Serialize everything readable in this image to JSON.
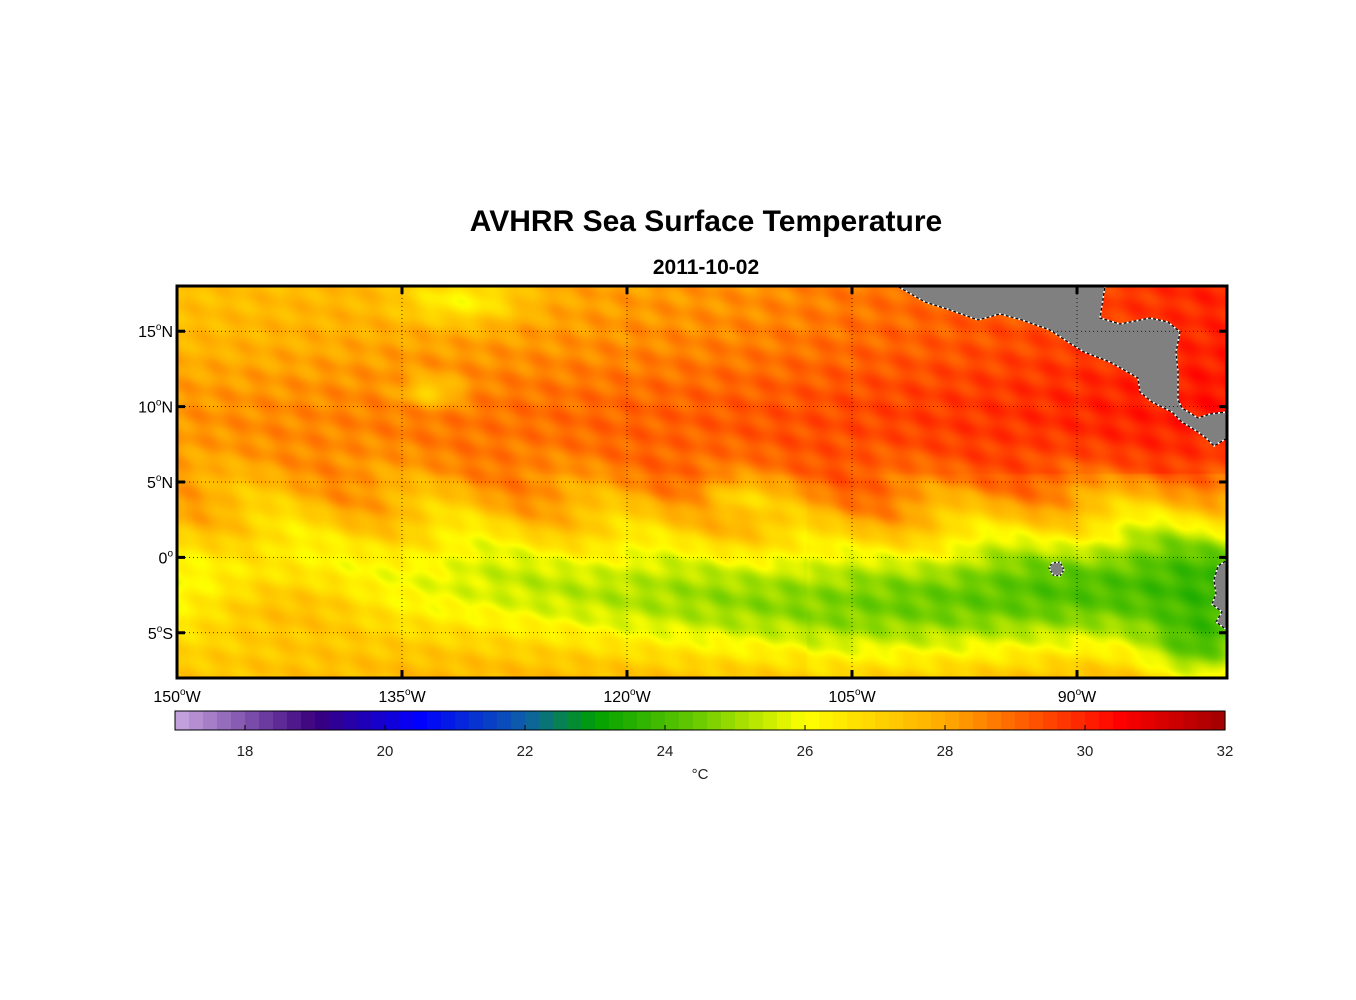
{
  "figure": {
    "title": "AVHRR Sea Surface Temperature",
    "subtitle": "2011-10-02"
  },
  "map": {
    "projection": "equirectangular",
    "lon_range": [
      -150,
      -80
    ],
    "lat_range": [
      -8,
      18
    ],
    "grid": true,
    "land_color": "#808080",
    "lat_ticks": [
      {
        "value": 15,
        "deg": "15",
        "hemi": "N"
      },
      {
        "value": 10,
        "deg": "10",
        "hemi": "N"
      },
      {
        "value": 5,
        "deg": "5",
        "hemi": "N"
      },
      {
        "value": 0,
        "deg": "0",
        "hemi": ""
      },
      {
        "value": -5,
        "deg": "5",
        "hemi": "S"
      }
    ],
    "lon_ticks": [
      {
        "value": -150,
        "deg": "150",
        "hemi": "W"
      },
      {
        "value": -135,
        "deg": "135",
        "hemi": "W"
      },
      {
        "value": -120,
        "deg": "120",
        "hemi": "W"
      },
      {
        "value": -105,
        "deg": "105",
        "hemi": "W"
      },
      {
        "value": -90,
        "deg": "90",
        "hemi": "W"
      }
    ]
  },
  "colorbar": {
    "range": [
      17,
      32
    ],
    "ticks": [
      18,
      20,
      22,
      24,
      26,
      28,
      30,
      32
    ],
    "unit_label": "°C",
    "stops": [
      {
        "v": 17,
        "c": "#c8a8e0"
      },
      {
        "v": 19,
        "c": "#3a007c"
      },
      {
        "v": 20.5,
        "c": "#0000ff"
      },
      {
        "v": 22,
        "c": "#0d5fa8"
      },
      {
        "v": 23,
        "c": "#00a000"
      },
      {
        "v": 24.5,
        "c": "#6ccc00"
      },
      {
        "v": 26,
        "c": "#ffff00"
      },
      {
        "v": 28,
        "c": "#ffaa00"
      },
      {
        "v": 30.5,
        "c": "#ff0000"
      },
      {
        "v": 32,
        "c": "#a00000"
      }
    ]
  }
}
